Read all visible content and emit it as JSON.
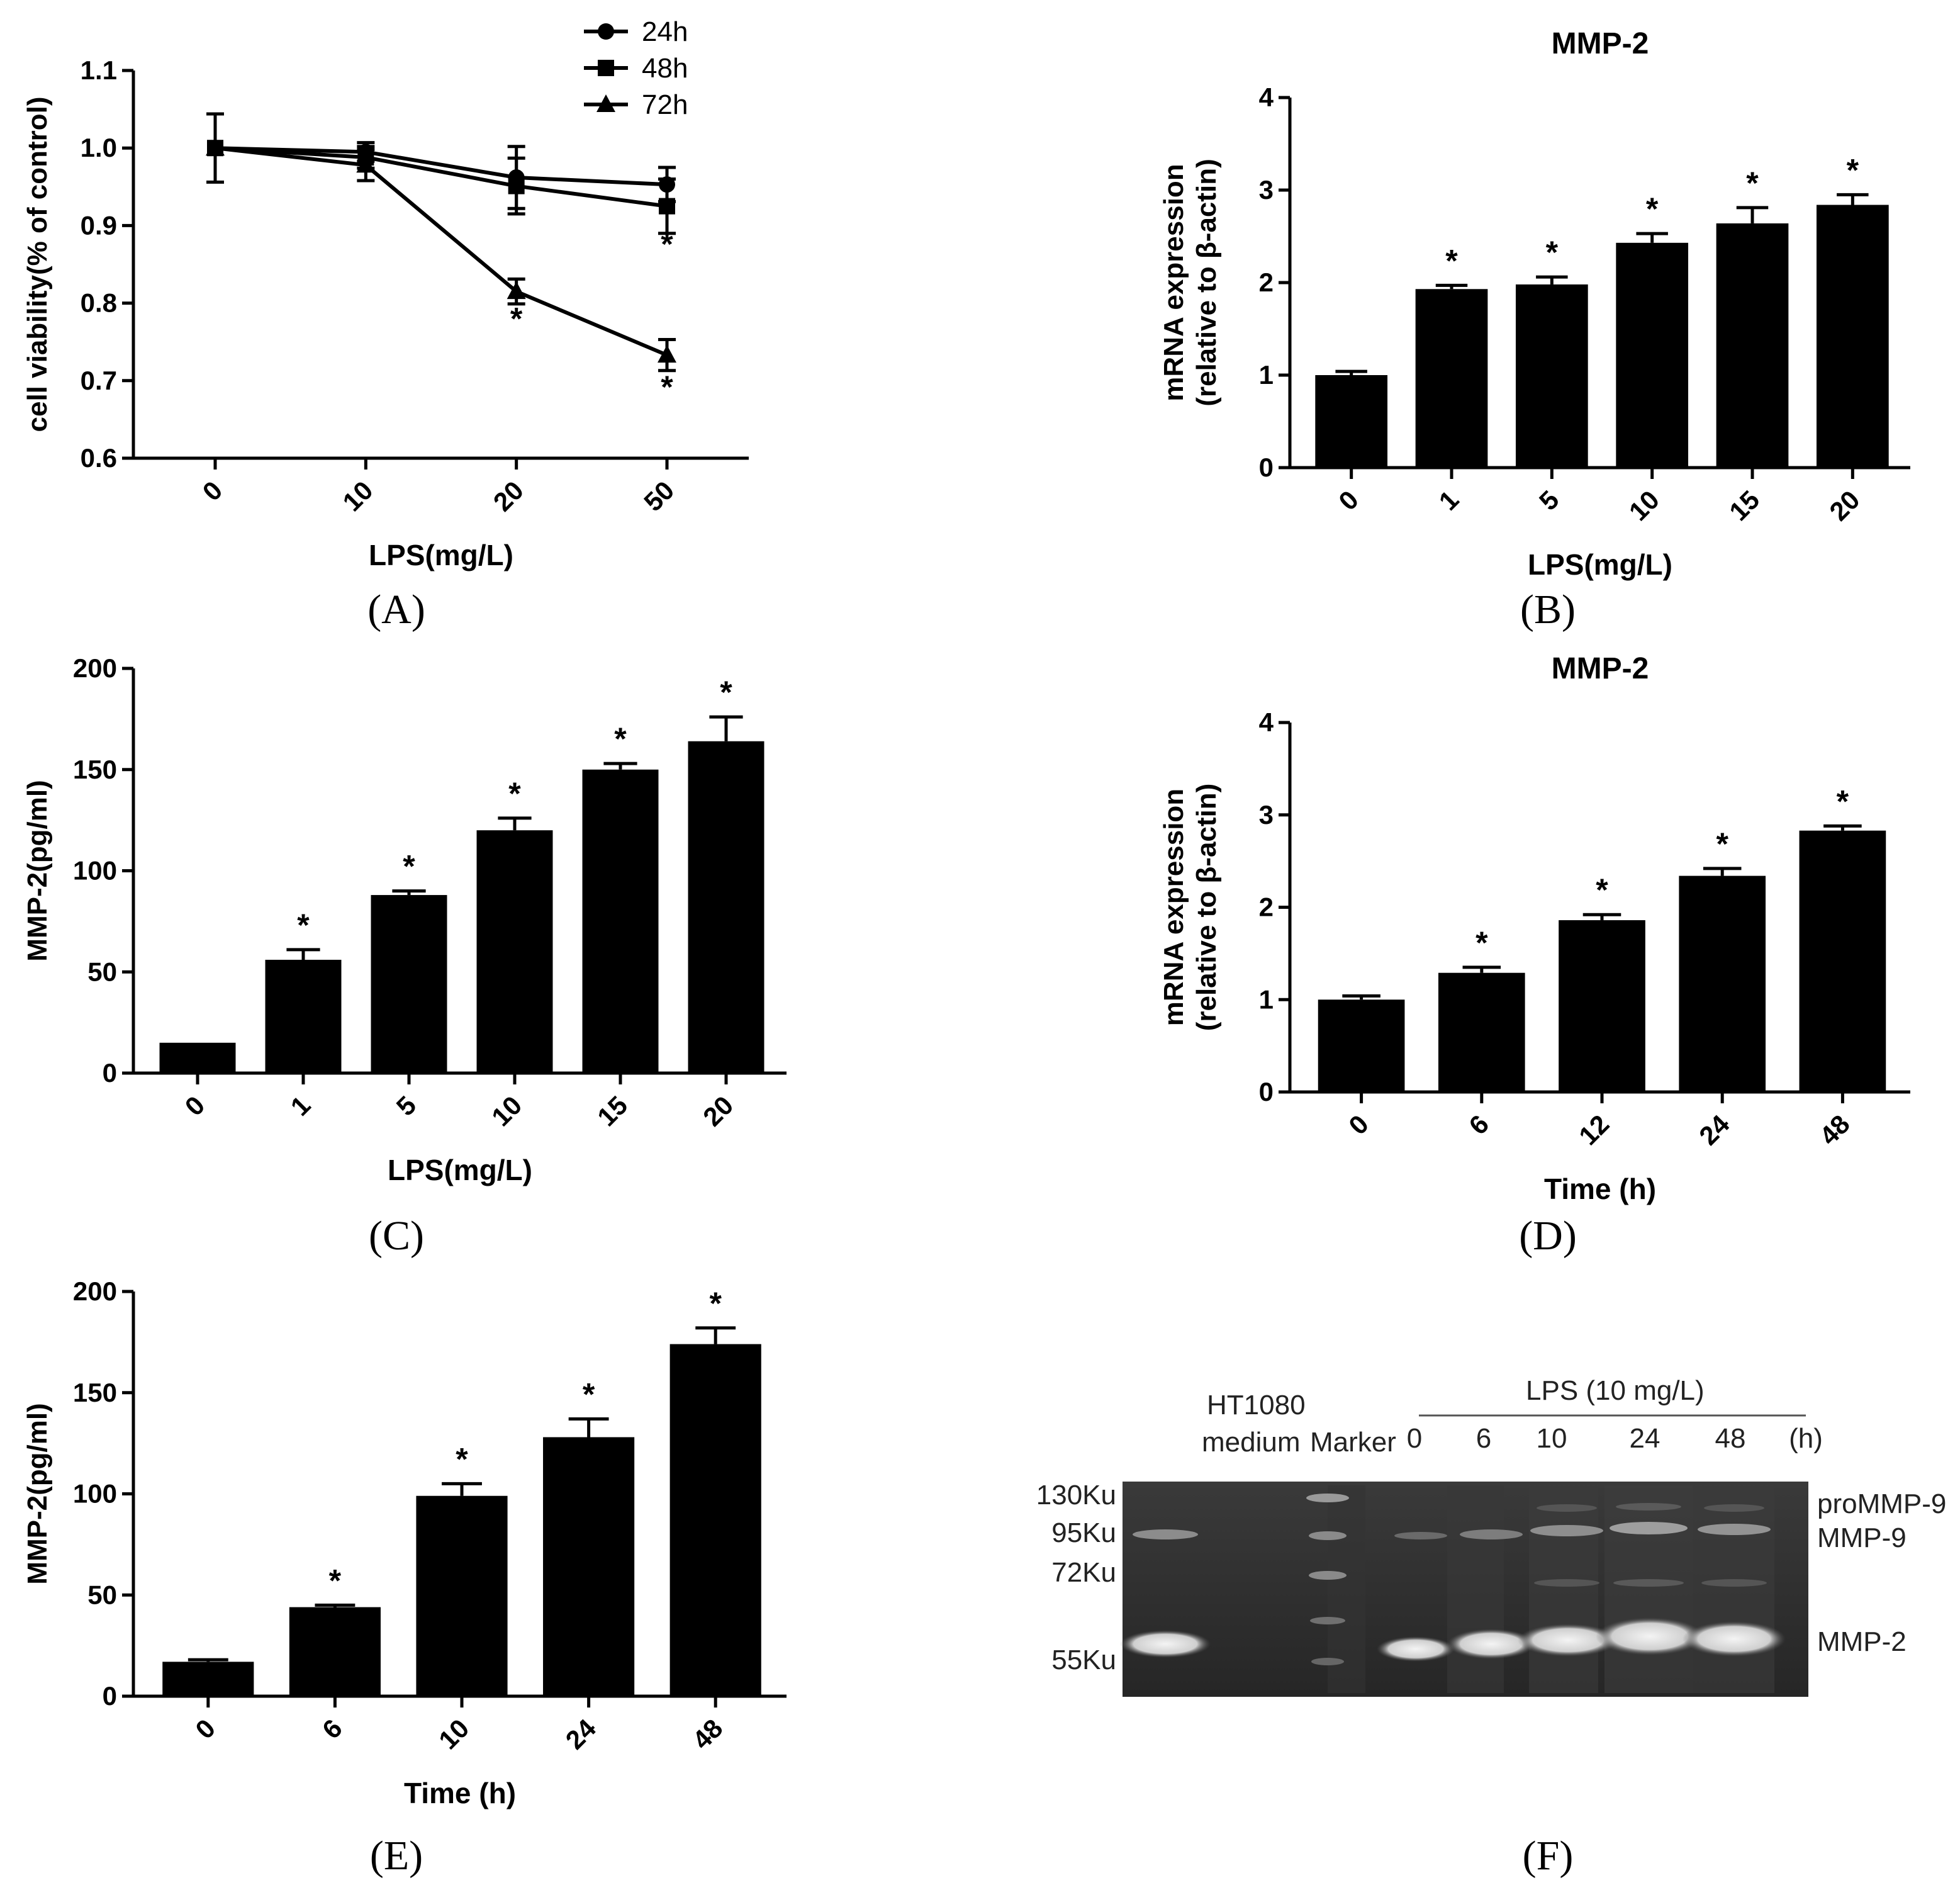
{
  "figure": {
    "panel_labels": [
      "(A)",
      "(B)",
      "(C)",
      "(D)",
      "(E)",
      "(F)"
    ]
  },
  "colors": {
    "ink": "#000000",
    "gel_bg": "#2b2b2b",
    "band": "#e8e8e8"
  },
  "chart_data": [
    {
      "id": "A",
      "type": "line",
      "title": "",
      "xlabel": "LPS(mg/L)",
      "ylabel": "cell viability(% of control)",
      "categories": [
        "0",
        "10",
        "20",
        "50"
      ],
      "ylim": [
        0.6,
        1.1
      ],
      "yticks": [
        "0.6",
        "0.7",
        "0.8",
        "0.9",
        "1.0",
        "1.1"
      ],
      "legend_position": "top-right",
      "series": [
        {
          "name": "24h",
          "marker": "circle",
          "values": [
            1.0,
            0.995,
            0.962,
            0.953
          ],
          "errors": [
            0.0,
            0.012,
            0.04,
            0.022
          ]
        },
        {
          "name": "48h",
          "marker": "square",
          "values": [
            1.0,
            0.988,
            0.951,
            0.925
          ],
          "errors": [
            0.044,
            0.014,
            0.036,
            0.035
          ]
        },
        {
          "name": "72h",
          "marker": "triangle",
          "values": [
            1.0,
            0.978,
            0.815,
            0.733
          ],
          "errors": [
            0.0,
            0.02,
            0.016,
            0.02
          ]
        }
      ],
      "annotations": [
        {
          "category": "20",
          "y": 0.766,
          "text": "*"
        },
        {
          "category": "50",
          "y": 0.862,
          "text": "*"
        },
        {
          "category": "50",
          "y": 0.678,
          "text": "*"
        }
      ]
    },
    {
      "id": "B",
      "type": "bar",
      "title": "MMP-2",
      "xlabel": "LPS(mg/L)",
      "ylabel": [
        "mRNA expression",
        "(relative to β-actin)"
      ],
      "categories": [
        "0",
        "1",
        "5",
        "10",
        "15",
        "20"
      ],
      "values": [
        1.0,
        1.93,
        1.98,
        2.43,
        2.64,
        2.84
      ],
      "errors": [
        0.04,
        0.04,
        0.08,
        0.1,
        0.17,
        0.11
      ],
      "ylim": [
        0,
        4
      ],
      "yticks": [
        "0",
        "1",
        "2",
        "3",
        "4"
      ],
      "stars": [
        "",
        "*",
        "*",
        "*",
        "*",
        "*"
      ]
    },
    {
      "id": "C",
      "type": "bar",
      "title": "",
      "xlabel": "LPS(mg/L)",
      "ylabel": "MMP-2(pg/ml)",
      "categories": [
        "0",
        "1",
        "5",
        "10",
        "15",
        "20"
      ],
      "values": [
        15,
        56,
        88,
        120,
        150,
        164
      ],
      "errors": [
        0,
        5,
        2,
        6,
        3,
        12
      ],
      "ylim": [
        0,
        200
      ],
      "yticks": [
        "0",
        "50",
        "100",
        "150",
        "200"
      ],
      "stars": [
        "",
        "*",
        "*",
        "*",
        "*",
        "*"
      ]
    },
    {
      "id": "D",
      "type": "bar",
      "title": "MMP-2",
      "xlabel": "Time (h)",
      "ylabel": [
        "mRNA expression",
        "(relative to β-actin)"
      ],
      "categories": [
        "0",
        "6",
        "12",
        "24",
        "48"
      ],
      "values": [
        1.0,
        1.29,
        1.86,
        2.34,
        2.83
      ],
      "errors": [
        0.04,
        0.06,
        0.06,
        0.08,
        0.05
      ],
      "ylim": [
        0,
        4
      ],
      "yticks": [
        "0",
        "1",
        "2",
        "3",
        "4"
      ],
      "stars": [
        "",
        "*",
        "*",
        "*",
        "*"
      ]
    },
    {
      "id": "E",
      "type": "bar",
      "title": "",
      "xlabel": "Time (h)",
      "ylabel": "MMP-2(pg/ml)",
      "categories": [
        "0",
        "6",
        "10",
        "24",
        "48"
      ],
      "values": [
        17,
        44,
        99,
        128,
        174
      ],
      "errors": [
        1,
        1,
        6,
        9,
        8
      ],
      "ylim": [
        0,
        200
      ],
      "yticks": [
        "0",
        "50",
        "100",
        "150",
        "200"
      ],
      "stars": [
        "",
        "*",
        "*",
        "*",
        "*"
      ]
    }
  ],
  "gel": {
    "header_left": [
      "HT1080",
      "medium"
    ],
    "marker_label": "Marker",
    "treatment_label": "LPS (10 mg/L)",
    "time_labels": [
      "0",
      "6",
      "10",
      "24",
      "48"
    ],
    "time_unit": "(h)",
    "mw_labels": [
      "130Ku",
      "95Ku",
      "72Ku",
      "55Ku"
    ],
    "band_labels": [
      "proMMP-9",
      "MMP-9",
      "MMP-2"
    ]
  }
}
